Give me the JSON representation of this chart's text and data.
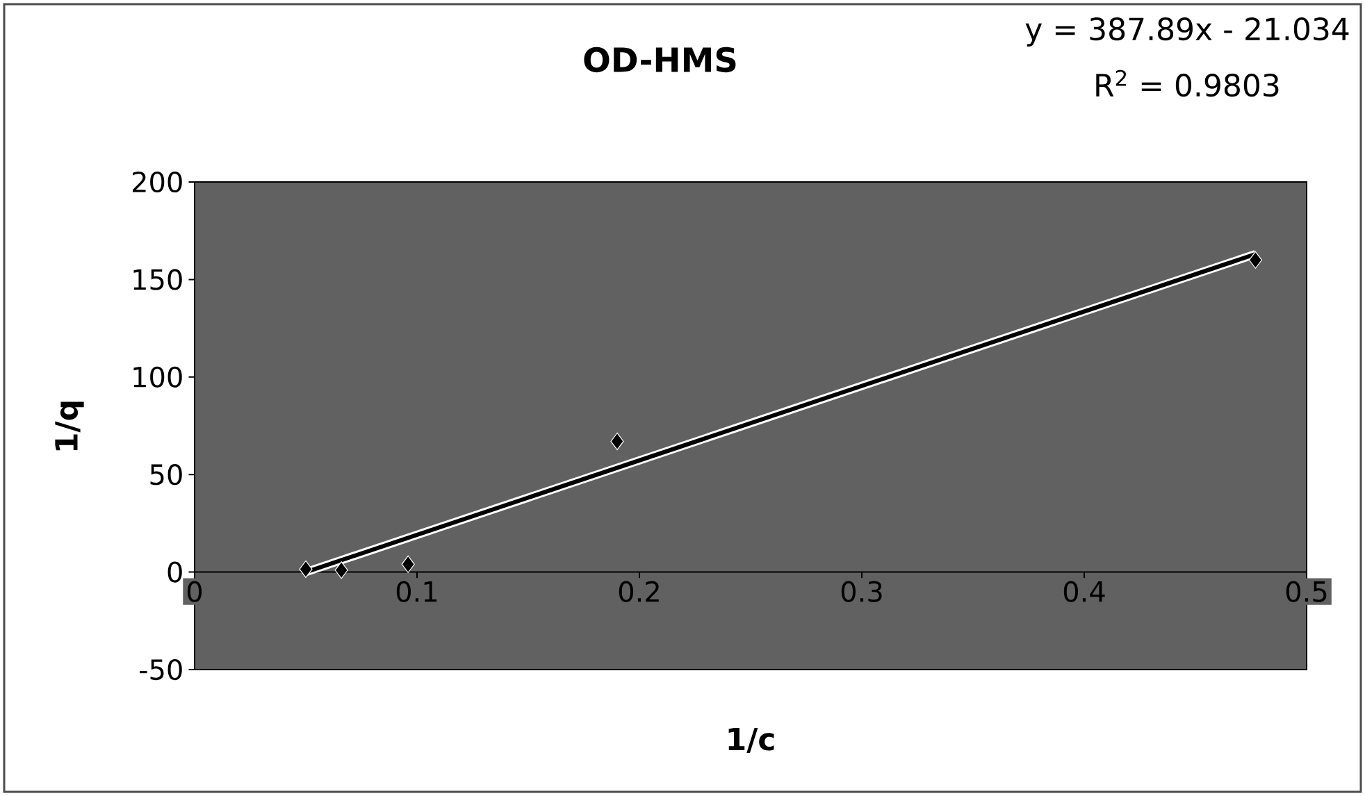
{
  "chart_data": {
    "type": "scatter",
    "title": "OD-HMS",
    "xlabel": "1/c",
    "ylabel": "1/q",
    "annotations": [
      "y = 387.89x - 21.034",
      "R$^{2}$ = 0.9803"
    ],
    "xlim": [
      0,
      0.5
    ],
    "ylim": [
      -50,
      200
    ],
    "xticks": [
      0,
      0.1,
      0.2,
      0.3,
      0.4,
      0.5
    ],
    "yticks": [
      -50,
      0,
      50,
      100,
      150,
      200
    ],
    "grid": false,
    "marker": "diamond",
    "series": [
      {
        "color": "#000000",
        "x": [
          0.05,
          0.066,
          0.096,
          0.19,
          0.477
        ],
        "values": [
          1.5,
          1,
          4,
          67,
          160
        ]
      },
      {
        "type": "line",
        "color": "#000000",
        "marker": "none",
        "line_style": "solid",
        "x": [
          0.05,
          0.477
        ],
        "values": [
          0,
          163
        ]
      }
    ]
  }
}
